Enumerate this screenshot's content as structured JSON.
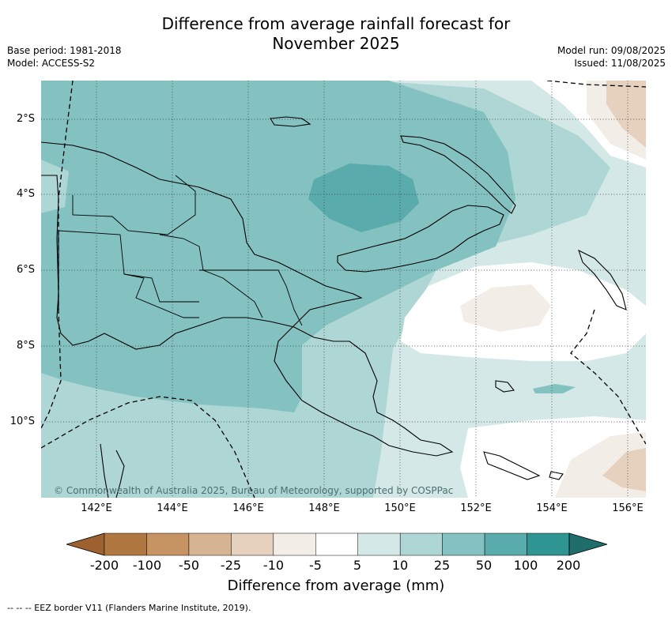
{
  "title_line1": "Difference from average rainfall forecast for",
  "title_line2": "November 2025",
  "base_period": "Base period: 1981-2018",
  "model": "Model: ACCESS-S2",
  "model_run": "Model run: 09/08/2025",
  "issued": "Issued: 11/08/2025",
  "lat_labels": [
    "2°S",
    "4°S",
    "6°S",
    "8°S",
    "10°S"
  ],
  "lon_labels": [
    "142°E",
    "144°E",
    "146°E",
    "148°E",
    "150°E",
    "152°E",
    "154°E",
    "156°E"
  ],
  "copyright": "© Commonwealth of Australia 2025, Bureau of Meteorology, supported by COSPPac",
  "colorbar": {
    "labels": [
      "-200",
      "-100",
      "-50",
      "-25",
      "-10",
      "-5",
      "5",
      "10",
      "25",
      "50",
      "100",
      "200"
    ],
    "colors": [
      "#9d6130",
      "#b07840",
      "#c59462",
      "#d6b391",
      "#e6d1bf",
      "#f2ede6",
      "#ffffff",
      "#d4e9e7",
      "#aed6d5",
      "#84c1c1",
      "#5aabab",
      "#2f9593",
      "#1f6e6c"
    ],
    "title": "Difference from average (mm)"
  },
  "footer": "--  --  -- EEZ border V11 (Flanders Marine Institute, 2019)."
}
